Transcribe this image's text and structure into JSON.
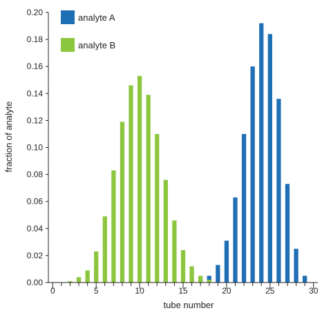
{
  "chart_data": {
    "type": "bar",
    "xlabel": "tube number",
    "ylabel": "fraction of analyte",
    "xlim": [
      -0.5,
      30.5
    ],
    "ylim": [
      0,
      0.2
    ],
    "x_ticks": [
      0,
      5,
      10,
      15,
      20,
      25,
      30
    ],
    "y_ticks": [
      0.0,
      0.02,
      0.04,
      0.06,
      0.08,
      0.1,
      0.12,
      0.14,
      0.16,
      0.18,
      0.2
    ],
    "grid": false,
    "legend": "top-left",
    "series": [
      {
        "name": "analyte A",
        "color": "#1f6fb4",
        "x": [
          0,
          1,
          2,
          3,
          4,
          5,
          6,
          7,
          8,
          9,
          10,
          11,
          12,
          13,
          14,
          15,
          16,
          17,
          18,
          19,
          20,
          21,
          22,
          23,
          24,
          25,
          26,
          27,
          28,
          29,
          30
        ],
        "values": [
          0,
          0,
          0,
          0,
          0,
          0,
          0,
          0,
          0,
          0,
          0,
          0,
          0,
          0,
          0,
          0,
          0.001,
          0.002,
          0.005,
          0.013,
          0.031,
          0.063,
          0.11,
          0.16,
          0.192,
          0.184,
          0.136,
          0.073,
          0.025,
          0.005,
          0
        ]
      },
      {
        "name": "analyte B",
        "color": "#8cc63f",
        "x": [
          0,
          1,
          2,
          3,
          4,
          5,
          6,
          7,
          8,
          9,
          10,
          11,
          12,
          13,
          14,
          15,
          16,
          17,
          18,
          19,
          20,
          21,
          22,
          23,
          24,
          25,
          26,
          27,
          28,
          29,
          30
        ],
        "values": [
          0,
          0,
          0.001,
          0.004,
          0.009,
          0.023,
          0.049,
          0.083,
          0.119,
          0.146,
          0.153,
          0.139,
          0.11,
          0.076,
          0.046,
          0.024,
          0.012,
          0.005,
          0.002,
          0,
          0,
          0,
          0,
          0,
          0,
          0,
          0,
          0,
          0,
          0,
          0
        ]
      }
    ]
  }
}
